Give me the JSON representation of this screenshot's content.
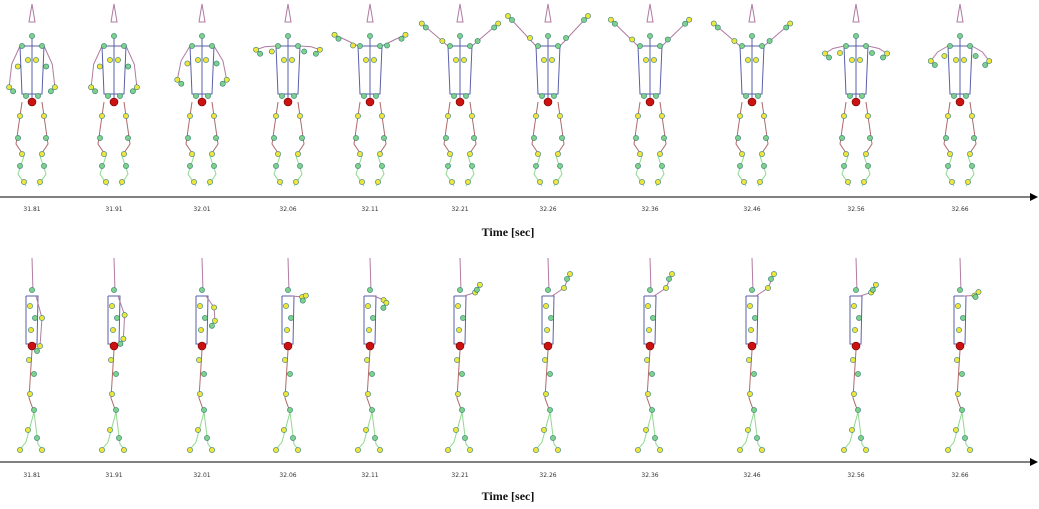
{
  "panels": [
    {
      "id": "frontal-view",
      "axis_title": "Time [sec]",
      "times": [
        "31.81",
        "31.91",
        "32.01",
        "32.06",
        "32.11",
        "32.21",
        "32.26",
        "32.36",
        "32.46",
        "32.56",
        "32.66"
      ]
    },
    {
      "id": "sagittal-view",
      "axis_title": "Time [sec]",
      "times": [
        "31.81",
        "31.91",
        "32.01",
        "32.06",
        "32.11",
        "32.21",
        "32.26",
        "32.36",
        "32.46",
        "32.56",
        "32.66"
      ]
    }
  ],
  "colors": {
    "axis": "#000000",
    "torso": "#5a5fa8",
    "upper": "#b07aa0",
    "legs_upper": "#b06a6a",
    "legs_lower": "#8fd88f",
    "marker_green": "#7fd18a",
    "marker_yellow": "#f2e53a",
    "marker_red": "#cc1111",
    "marker_edge": "#2b7a78"
  }
}
